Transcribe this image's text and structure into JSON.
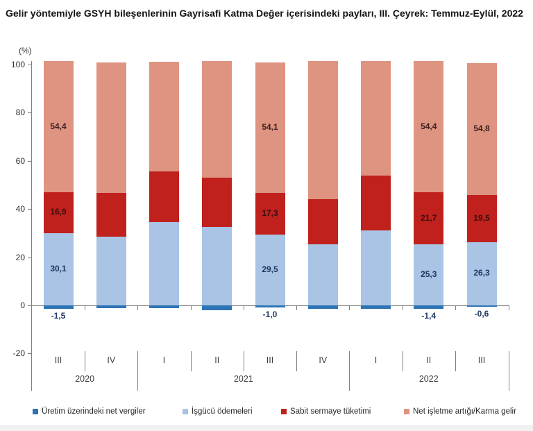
{
  "title": "Gelir yöntemiyle GSYH bileşenlerinin Gayrisafi Katma Değer içerisindeki payları, III. Çeyrek: Temmuz-Eylül, 2022",
  "chart_data": {
    "type": "bar",
    "stacked": true,
    "unit_label": "(%)",
    "ylim": [
      -20,
      100
    ],
    "yticks": [
      100,
      80,
      60,
      40,
      20,
      0,
      -20
    ],
    "grid": false,
    "legend_position": "bottom",
    "quarters": [
      "III",
      "IV",
      "I",
      "II",
      "III",
      "IV",
      "I",
      "II",
      "III"
    ],
    "year_groups": [
      {
        "label": "2020",
        "from": 0,
        "to": 1
      },
      {
        "label": "2021",
        "from": 2,
        "to": 5
      },
      {
        "label": "2022",
        "from": 6,
        "to": 8
      }
    ],
    "series": [
      {
        "name": "Üretim üzerindeki net vergiler",
        "color": "#2E74B5",
        "values": [
          -1.5,
          -1.1,
          -1.2,
          -2.0,
          -1.0,
          -1.4,
          -1.5,
          -1.4,
          -0.6
        ]
      },
      {
        "name": "İşgücü ödemeleri",
        "color": "#A9C4E4",
        "values": [
          30.1,
          28.6,
          34.7,
          32.6,
          29.5,
          25.4,
          31.0,
          25.3,
          26.3
        ]
      },
      {
        "name": "Sabit sermaye tüketimi",
        "color": "#C0211D",
        "values": [
          16.9,
          18.2,
          20.9,
          20.3,
          17.3,
          18.6,
          22.8,
          21.7,
          19.5
        ]
      },
      {
        "name": "Net işletme artığı/Karma gelir",
        "color": "#DE9480",
        "values": [
          54.4,
          54.0,
          45.6,
          48.5,
          54.1,
          57.4,
          47.6,
          54.4,
          54.8
        ]
      }
    ],
    "bar_labels": [
      {
        "bar": 0,
        "isgucu": "30,1",
        "sabit": "16,9",
        "net": "54,4",
        "vergiler": "-1,5"
      },
      {
        "bar": 4,
        "isgucu": "29,5",
        "sabit": "17,3",
        "net": "54,1",
        "vergiler": "-1,0"
      },
      {
        "bar": 7,
        "isgucu": "25,3",
        "sabit": "21,7",
        "net": "54,4",
        "vergiler": "-1,4"
      },
      {
        "bar": 8,
        "isgucu": "26,3",
        "sabit": "19,5",
        "net": "54,8",
        "vergiler": "-0,6"
      }
    ],
    "label_colors": {
      "vergiler": "#1F3864",
      "isgucu": "#1F3864",
      "sabit": "#400C0C",
      "net": "#402020"
    },
    "axis_color": "#7F7F7F"
  }
}
